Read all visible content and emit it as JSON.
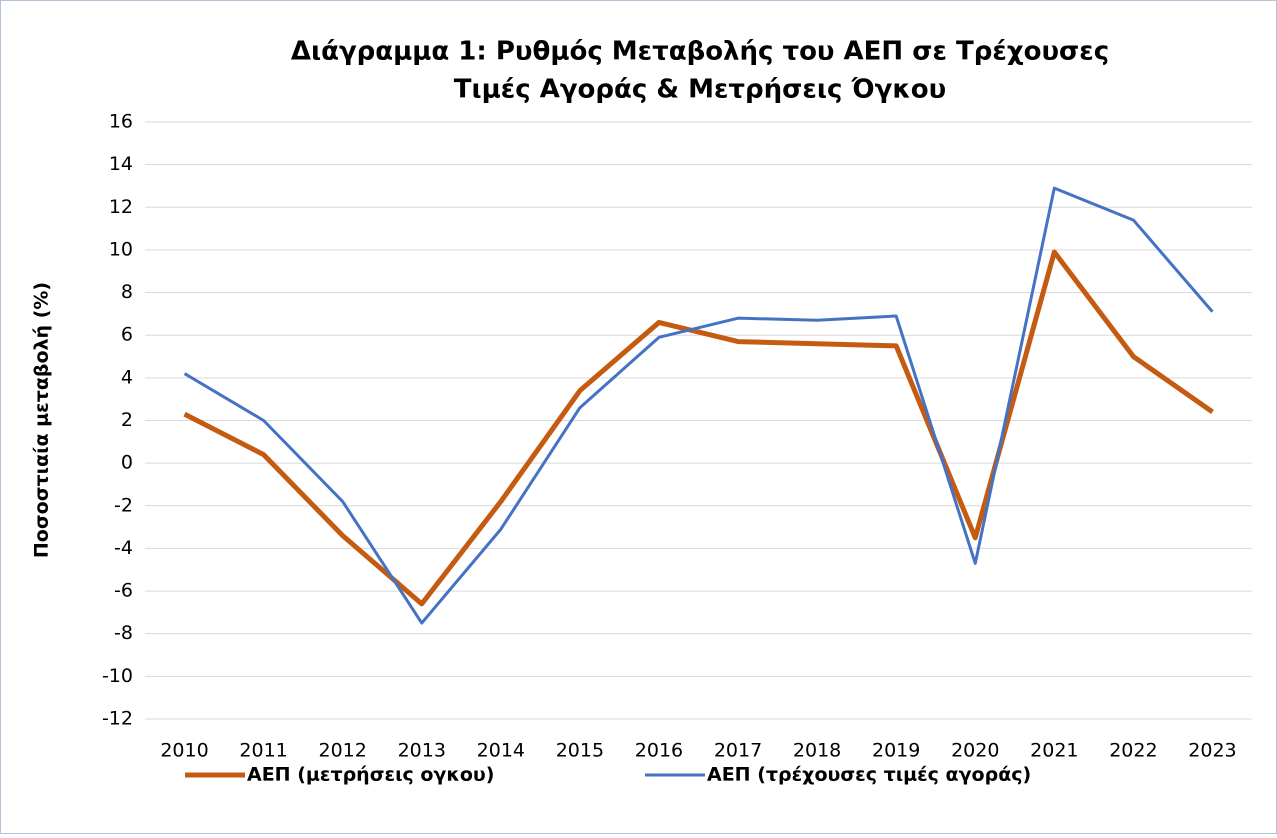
{
  "chart_data": {
    "type": "line",
    "title": [
      "Διάγραμμα 1: Ρυθμός Μεταβολής του ΑΕΠ σε Τρέχουσες",
      "Τιμές Αγοράς & Μετρήσεις Όγκου"
    ],
    "y_label": "Ποσοστιαία μεταβολή (%)",
    "categories": [
      "2010",
      "2011",
      "2012",
      "2013",
      "2014",
      "2015",
      "2016",
      "2017",
      "2018",
      "2019",
      "2020",
      "2021",
      "2022",
      "2023"
    ],
    "series": [
      {
        "name": "ΑΕΠ (μετρήσεις ογκου)",
        "color": "#c55a11",
        "width": 5,
        "values": [
          2.3,
          0.4,
          -3.4,
          -6.6,
          -1.8,
          3.4,
          6.6,
          5.7,
          5.6,
          5.5,
          -3.5,
          9.9,
          5.0,
          2.4
        ]
      },
      {
        "name": "ΑΕΠ (τρέχουσες τιμές αγοράς)",
        "color": "#4472c4",
        "width": 3,
        "values": [
          4.2,
          2.0,
          -1.8,
          -7.5,
          -3.1,
          2.6,
          5.9,
          6.8,
          6.7,
          6.9,
          -4.7,
          12.9,
          11.4,
          7.1
        ]
      }
    ],
    "ylim": [
      -12,
      16
    ],
    "yticks": [
      -12,
      -10,
      -8,
      -6,
      -4,
      -2,
      0,
      2,
      4,
      6,
      8,
      10,
      12,
      14,
      16
    ],
    "grid": true,
    "legend": "bottom"
  }
}
